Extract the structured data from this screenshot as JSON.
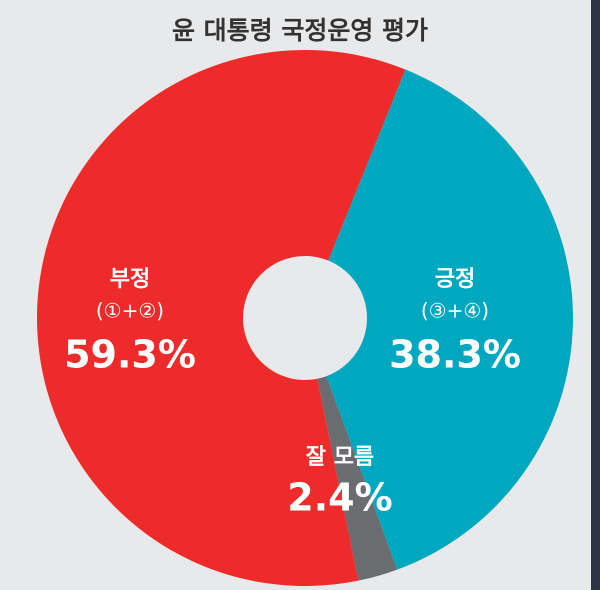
{
  "chart_data": {
    "type": "pie",
    "title": "윤 대통령 국정운영 평가",
    "categories": [
      "긍정",
      "잘 모름",
      "부정"
    ],
    "notes": [
      "(③+④)",
      null,
      "(①+②)"
    ],
    "values": [
      38.3,
      2.4,
      59.3
    ],
    "value_labels": [
      "38.3%",
      "2.4%",
      "59.3%"
    ],
    "colors": [
      "#00a8bf",
      "#6b6c70",
      "#ee2b2b"
    ]
  }
}
